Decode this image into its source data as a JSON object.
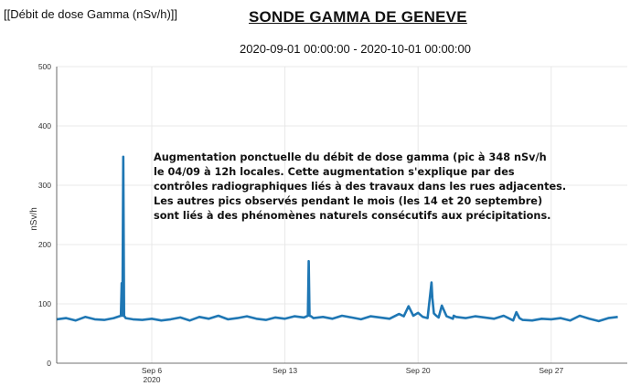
{
  "header": {
    "top_left_label": "[[Débit de dose Gamma (nSv/h)]]",
    "title": "SONDE GAMMA DE GENEVE",
    "date_range": "2020-09-01 00:00:00 - 2020-10-01 00:00:00"
  },
  "annotation": {
    "lines": [
      "Augmentation ponctuelle du débit de dose gamma (pic à 348 nSv/h",
      "le 04/09 à 12h locales. Cette augmentation s'explique par des",
      "contrôles radiographiques liés à des travaux dans les rues adjacentes.",
      "Les autres pics observés pendant le mois (les 14 et 20 septembre)",
      "sont liés à des phénomènes naturels consécutifs aux précipitations."
    ]
  },
  "chart_data": {
    "type": "line",
    "ylabel": "nSv/h",
    "xlabel": "",
    "xlim": [
      "2020-09-01",
      "2020-10-01"
    ],
    "ylim": [
      0,
      500
    ],
    "yticks": [
      0,
      100,
      200,
      300,
      400,
      500
    ],
    "xticks": [
      {
        "date": "2020-09-06",
        "label": "Sep 6",
        "sublabel": "2020"
      },
      {
        "date": "2020-09-13",
        "label": "Sep 13",
        "sublabel": ""
      },
      {
        "date": "2020-09-20",
        "label": "Sep 20",
        "sublabel": ""
      },
      {
        "date": "2020-09-27",
        "label": "Sep 27",
        "sublabel": ""
      }
    ],
    "grid": true,
    "color": "#1f77b4",
    "series": [
      {
        "name": "",
        "x": [
          "2020-09-01 00:00",
          "2020-09-01 12:00",
          "2020-09-02 00:00",
          "2020-09-02 12:00",
          "2020-09-03 00:00",
          "2020-09-03 12:00",
          "2020-09-04 00:00",
          "2020-09-04 09:00",
          "2020-09-04 10:00",
          "2020-09-04 11:00",
          "2020-09-04 12:00",
          "2020-09-04 13:00",
          "2020-09-04 15:00",
          "2020-09-05 00:00",
          "2020-09-05 12:00",
          "2020-09-06 00:00",
          "2020-09-06 12:00",
          "2020-09-07 00:00",
          "2020-09-07 12:00",
          "2020-09-08 00:00",
          "2020-09-08 12:00",
          "2020-09-09 00:00",
          "2020-09-09 12:00",
          "2020-09-10 00:00",
          "2020-09-10 12:00",
          "2020-09-11 00:00",
          "2020-09-11 12:00",
          "2020-09-12 00:00",
          "2020-09-12 12:00",
          "2020-09-13 00:00",
          "2020-09-13 12:00",
          "2020-09-14 00:00",
          "2020-09-14 05:00",
          "2020-09-14 06:00",
          "2020-09-14 07:00",
          "2020-09-14 09:00",
          "2020-09-14 12:00",
          "2020-09-15 00:00",
          "2020-09-15 12:00",
          "2020-09-16 00:00",
          "2020-09-16 12:00",
          "2020-09-17 00:00",
          "2020-09-17 12:00",
          "2020-09-18 00:00",
          "2020-09-18 12:00",
          "2020-09-19 00:00",
          "2020-09-19 06:00",
          "2020-09-19 12:00",
          "2020-09-19 18:00",
          "2020-09-20 00:00",
          "2020-09-20 06:00",
          "2020-09-20 12:00",
          "2020-09-20 17:00",
          "2020-09-20 18:00",
          "2020-09-20 20:00",
          "2020-09-20 23:00",
          "2020-09-21 02:00",
          "2020-09-21 06:00",
          "2020-09-21 12:00",
          "2020-09-21 20:00",
          "2020-09-21 21:00",
          "2020-09-22 00:00",
          "2020-09-22 12:00",
          "2020-09-23 00:00",
          "2020-09-23 12:00",
          "2020-09-24 00:00",
          "2020-09-24 12:00",
          "2020-09-25 00:00",
          "2020-09-25 04:00",
          "2020-09-25 08:00",
          "2020-09-25 12:00",
          "2020-09-26 00:00",
          "2020-09-26 12:00",
          "2020-09-27 00:00",
          "2020-09-27 12:00",
          "2020-09-28 00:00",
          "2020-09-28 12:00",
          "2020-09-29 00:00",
          "2020-09-29 12:00",
          "2020-09-30 00:00",
          "2020-09-30 12:00"
        ],
        "y": [
          74,
          76,
          72,
          78,
          74,
          73,
          76,
          80,
          135,
          80,
          348,
          80,
          76,
          74,
          73,
          75,
          72,
          74,
          77,
          72,
          78,
          75,
          80,
          74,
          76,
          79,
          75,
          73,
          77,
          75,
          79,
          77,
          80,
          172,
          80,
          79,
          76,
          78,
          75,
          80,
          77,
          74,
          79,
          77,
          75,
          83,
          79,
          96,
          80,
          85,
          78,
          76,
          136,
          110,
          84,
          80,
          77,
          97,
          79,
          75,
          80,
          78,
          76,
          79,
          77,
          75,
          80,
          72,
          86,
          76,
          73,
          72,
          75,
          74,
          76,
          72,
          80,
          75,
          71,
          76,
          78
        ]
      }
    ]
  }
}
